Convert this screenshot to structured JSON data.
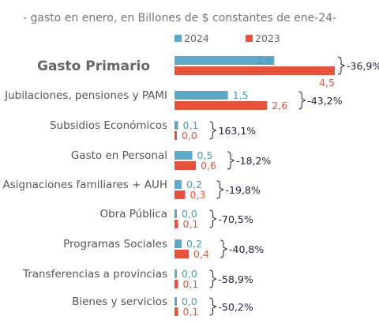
{
  "chart_data": {
    "type": "bar",
    "orientation": "horizontal",
    "subtitle": "- gasto en enero, en Billones de $ constantes de ene-24-",
    "categories": [
      "Gasto Primario",
      "Jubilaciones, pensiones y PAMI",
      "Subsidios Económicos",
      "Gasto en Personal",
      "Asignaciones familiares + AUH",
      "Obra Pública",
      "Programas Sociales",
      "Transferencias a provincias",
      "Bienes y servicios"
    ],
    "series": [
      {
        "name": "2024",
        "color": "#5ba8c7",
        "label_color": "#4a9bbb",
        "values": [
          2.8,
          1.5,
          0.1,
          0.5,
          0.2,
          0.0,
          0.2,
          0.0,
          0.0
        ],
        "labels": [
          "2,8",
          "1,5",
          "0,1",
          "0,5",
          "0,2",
          "0,0",
          "0,2",
          "0,0",
          "0,0"
        ]
      },
      {
        "name": "2023",
        "color": "#e5533d",
        "label_color": "#e5533d",
        "values": [
          4.5,
          2.6,
          0.0,
          0.6,
          0.3,
          0.1,
          0.4,
          0.1,
          0.1
        ],
        "labels": [
          "4,5",
          "2,6",
          "0,0",
          "0,6",
          "0,3",
          "0,1",
          "0,4",
          "0,1",
          "0,1"
        ]
      }
    ],
    "variation_labels": [
      "-36,9%",
      "-43,2%",
      "163,1%",
      "-18,2%",
      "-19,8%",
      "-70,5%",
      "-40,8%",
      "-58,9%",
      "-50,2%"
    ],
    "bold_categories": [
      0
    ],
    "xlim": [
      0,
      4.5
    ],
    "grid": false,
    "legend_position": "top-center"
  }
}
